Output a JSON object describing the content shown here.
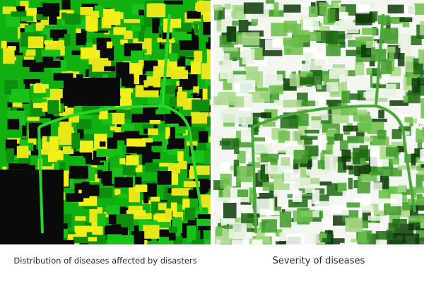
{
  "panels": [
    {
      "caption": "Distribution of diseases affected by disasters"
    },
    {
      "caption": "Severity of diseases"
    }
  ]
}
